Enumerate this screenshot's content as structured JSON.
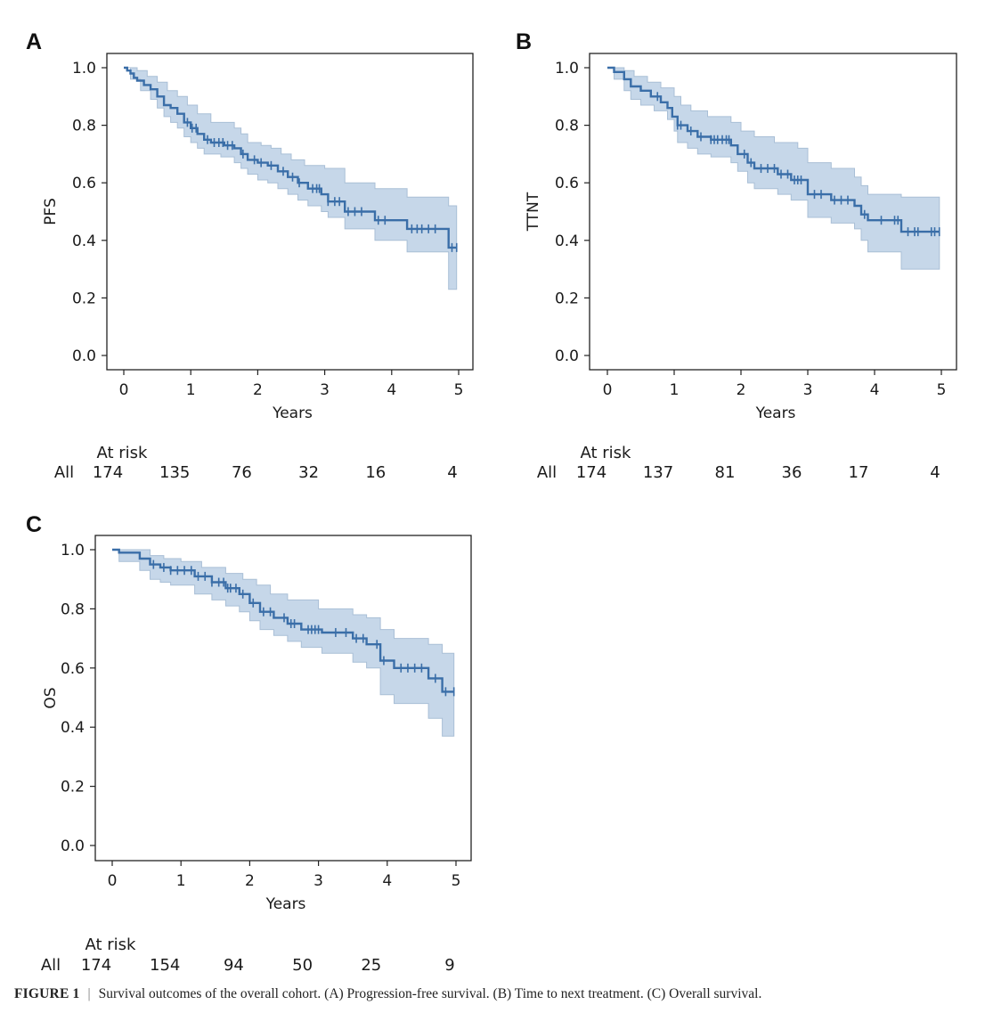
{
  "caption": {
    "figure_label": "FIGURE 1",
    "separator": "|",
    "text": "Survival outcomes of the overall cohort. (A) Progression-free survival. (B) Time to next treatment. (C) Overall survival."
  },
  "colors": {
    "line": "#3a6ea8",
    "ci_fill": "#c3d5e8",
    "ci_edge": "#a9bfd6",
    "axis": "#222222"
  },
  "chart_data": [
    {
      "panel": "A",
      "type": "line",
      "subtype": "kaplan-meier",
      "title": "",
      "xlabel": "Years",
      "ylabel": "PFS",
      "xlim": [
        0,
        5
      ],
      "ylim": [
        0.0,
        1.0
      ],
      "xticks": [
        "0",
        "1",
        "2",
        "3",
        "4",
        "5"
      ],
      "yticks": [
        "0.0",
        "0.2",
        "0.4",
        "0.6",
        "0.8",
        "1.0"
      ],
      "grid": false,
      "series": [
        {
          "name": "All",
          "steps": [
            [
              0,
              1.0
            ],
            [
              0.05,
              0.99
            ],
            [
              0.1,
              0.98
            ],
            [
              0.15,
              0.965
            ],
            [
              0.2,
              0.955
            ],
            [
              0.3,
              0.94
            ],
            [
              0.4,
              0.925
            ],
            [
              0.5,
              0.9
            ],
            [
              0.6,
              0.87
            ],
            [
              0.7,
              0.86
            ],
            [
              0.8,
              0.84
            ],
            [
              0.9,
              0.81
            ],
            [
              1.0,
              0.79
            ],
            [
              1.1,
              0.77
            ],
            [
              1.2,
              0.75
            ],
            [
              1.3,
              0.74
            ],
            [
              1.5,
              0.73
            ],
            [
              1.65,
              0.72
            ],
            [
              1.75,
              0.7
            ],
            [
              1.85,
              0.68
            ],
            [
              2.0,
              0.67
            ],
            [
              2.15,
              0.66
            ],
            [
              2.3,
              0.64
            ],
            [
              2.45,
              0.62
            ],
            [
              2.6,
              0.6
            ],
            [
              2.75,
              0.58
            ],
            [
              2.95,
              0.56
            ],
            [
              3.05,
              0.535
            ],
            [
              3.3,
              0.5
            ],
            [
              3.75,
              0.47
            ],
            [
              4.23,
              0.44
            ],
            [
              4.85,
              0.375
            ]
          ],
          "end_time": 4.97,
          "ci_lower": [
            [
              0,
              1.0
            ],
            [
              0.1,
              0.96
            ],
            [
              0.25,
              0.92
            ],
            [
              0.4,
              0.89
            ],
            [
              0.5,
              0.86
            ],
            [
              0.6,
              0.83
            ],
            [
              0.7,
              0.81
            ],
            [
              0.8,
              0.79
            ],
            [
              0.9,
              0.76
            ],
            [
              1.0,
              0.74
            ],
            [
              1.1,
              0.72
            ],
            [
              1.2,
              0.7
            ],
            [
              1.45,
              0.69
            ],
            [
              1.65,
              0.67
            ],
            [
              1.75,
              0.65
            ],
            [
              1.85,
              0.63
            ],
            [
              2.0,
              0.61
            ],
            [
              2.15,
              0.6
            ],
            [
              2.3,
              0.58
            ],
            [
              2.45,
              0.56
            ],
            [
              2.6,
              0.54
            ],
            [
              2.75,
              0.52
            ],
            [
              2.95,
              0.5
            ],
            [
              3.05,
              0.48
            ],
            [
              3.3,
              0.44
            ],
            [
              3.75,
              0.4
            ],
            [
              4.23,
              0.36
            ],
            [
              4.85,
              0.23
            ]
          ],
          "ci_upper": [
            [
              0,
              1.0
            ],
            [
              0.1,
              1.0
            ],
            [
              0.2,
              0.99
            ],
            [
              0.35,
              0.97
            ],
            [
              0.5,
              0.95
            ],
            [
              0.65,
              0.92
            ],
            [
              0.8,
              0.9
            ],
            [
              0.95,
              0.87
            ],
            [
              1.1,
              0.84
            ],
            [
              1.3,
              0.81
            ],
            [
              1.65,
              0.79
            ],
            [
              1.75,
              0.77
            ],
            [
              1.85,
              0.74
            ],
            [
              2.05,
              0.73
            ],
            [
              2.2,
              0.72
            ],
            [
              2.35,
              0.7
            ],
            [
              2.5,
              0.68
            ],
            [
              2.7,
              0.66
            ],
            [
              3.0,
              0.65
            ],
            [
              3.3,
              0.6
            ],
            [
              3.75,
              0.58
            ],
            [
              4.23,
              0.55
            ],
            [
              4.85,
              0.52
            ]
          ],
          "censor_times": [
            0.95,
            1.02,
            1.08,
            1.25,
            1.35,
            1.42,
            1.48,
            1.55,
            1.62,
            1.78,
            1.95,
            2.05,
            2.2,
            2.38,
            2.52,
            2.62,
            2.82,
            2.88,
            2.92,
            3.05,
            3.15,
            3.22,
            3.35,
            3.45,
            3.55,
            3.8,
            3.9,
            4.3,
            4.38,
            4.45,
            4.55,
            4.65,
            4.9,
            4.97
          ]
        }
      ],
      "at_risk": {
        "title": "At risk",
        "row_label": "All",
        "times": [
          0,
          1,
          2,
          3,
          4,
          5
        ],
        "counts": [
          174,
          135,
          76,
          32,
          16,
          4
        ]
      }
    },
    {
      "panel": "B",
      "type": "line",
      "subtype": "kaplan-meier",
      "title": "",
      "xlabel": "Years",
      "ylabel": "TTNT",
      "xlim": [
        0,
        5
      ],
      "ylim": [
        0.0,
        1.0
      ],
      "xticks": [
        "0",
        "1",
        "2",
        "3",
        "4",
        "5"
      ],
      "yticks": [
        "0.0",
        "0.2",
        "0.4",
        "0.6",
        "0.8",
        "1.0"
      ],
      "grid": false,
      "series": [
        {
          "name": "All",
          "steps": [
            [
              0,
              1.0
            ],
            [
              0.1,
              0.985
            ],
            [
              0.25,
              0.96
            ],
            [
              0.35,
              0.935
            ],
            [
              0.5,
              0.92
            ],
            [
              0.65,
              0.9
            ],
            [
              0.8,
              0.88
            ],
            [
              0.9,
              0.86
            ],
            [
              0.97,
              0.83
            ],
            [
              1.05,
              0.8
            ],
            [
              1.2,
              0.78
            ],
            [
              1.35,
              0.76
            ],
            [
              1.55,
              0.75
            ],
            [
              1.85,
              0.73
            ],
            [
              1.95,
              0.7
            ],
            [
              2.1,
              0.67
            ],
            [
              2.2,
              0.65
            ],
            [
              2.55,
              0.63
            ],
            [
              2.75,
              0.61
            ],
            [
              3.0,
              0.56
            ],
            [
              3.35,
              0.54
            ],
            [
              3.7,
              0.52
            ],
            [
              3.8,
              0.49
            ],
            [
              3.9,
              0.47
            ],
            [
              4.4,
              0.43
            ]
          ],
          "end_time": 4.97,
          "ci_lower": [
            [
              0,
              1.0
            ],
            [
              0.1,
              0.96
            ],
            [
              0.25,
              0.92
            ],
            [
              0.35,
              0.89
            ],
            [
              0.5,
              0.87
            ],
            [
              0.7,
              0.85
            ],
            [
              0.9,
              0.82
            ],
            [
              1.0,
              0.78
            ],
            [
              1.05,
              0.74
            ],
            [
              1.2,
              0.72
            ],
            [
              1.35,
              0.7
            ],
            [
              1.55,
              0.69
            ],
            [
              1.85,
              0.67
            ],
            [
              1.95,
              0.64
            ],
            [
              2.1,
              0.6
            ],
            [
              2.2,
              0.58
            ],
            [
              2.55,
              0.56
            ],
            [
              2.75,
              0.54
            ],
            [
              3.0,
              0.48
            ],
            [
              3.35,
              0.46
            ],
            [
              3.7,
              0.44
            ],
            [
              3.8,
              0.4
            ],
            [
              3.9,
              0.36
            ],
            [
              4.4,
              0.3
            ]
          ],
          "ci_upper": [
            [
              0,
              1.0
            ],
            [
              0.1,
              1.0
            ],
            [
              0.25,
              0.99
            ],
            [
              0.4,
              0.97
            ],
            [
              0.6,
              0.95
            ],
            [
              0.8,
              0.93
            ],
            [
              1.0,
              0.9
            ],
            [
              1.1,
              0.87
            ],
            [
              1.25,
              0.85
            ],
            [
              1.5,
              0.83
            ],
            [
              1.85,
              0.81
            ],
            [
              2.0,
              0.78
            ],
            [
              2.2,
              0.76
            ],
            [
              2.5,
              0.74
            ],
            [
              2.85,
              0.72
            ],
            [
              3.0,
              0.67
            ],
            [
              3.35,
              0.65
            ],
            [
              3.7,
              0.62
            ],
            [
              3.8,
              0.59
            ],
            [
              3.9,
              0.56
            ],
            [
              4.4,
              0.55
            ]
          ],
          "censor_times": [
            0.75,
            1.05,
            1.1,
            1.25,
            1.4,
            1.55,
            1.6,
            1.65,
            1.72,
            1.78,
            1.82,
            2.05,
            2.15,
            2.3,
            2.4,
            2.5,
            2.6,
            2.7,
            2.8,
            2.85,
            2.9,
            3.1,
            3.2,
            3.4,
            3.5,
            3.6,
            3.85,
            4.1,
            4.3,
            4.35,
            4.5,
            4.6,
            4.65,
            4.85,
            4.9,
            4.97
          ]
        }
      ],
      "at_risk": {
        "title": "At risk",
        "row_label": "All",
        "times": [
          0,
          1,
          2,
          3,
          4,
          5
        ],
        "counts": [
          174,
          137,
          81,
          36,
          17,
          4
        ]
      }
    },
    {
      "panel": "C",
      "type": "line",
      "subtype": "kaplan-meier",
      "title": "",
      "xlabel": "Years",
      "ylabel": "OS",
      "xlim": [
        0,
        5
      ],
      "ylim": [
        0.0,
        1.0
      ],
      "xticks": [
        "0",
        "1",
        "2",
        "3",
        "4",
        "5"
      ],
      "yticks": [
        "0.0",
        "0.2",
        "0.4",
        "0.6",
        "0.8",
        "1.0"
      ],
      "grid": false,
      "series": [
        {
          "name": "All",
          "steps": [
            [
              0,
              1.0
            ],
            [
              0.1,
              0.99
            ],
            [
              0.4,
              0.97
            ],
            [
              0.55,
              0.95
            ],
            [
              0.7,
              0.94
            ],
            [
              0.85,
              0.93
            ],
            [
              1.2,
              0.91
            ],
            [
              1.45,
              0.89
            ],
            [
              1.65,
              0.87
            ],
            [
              1.85,
              0.85
            ],
            [
              2.0,
              0.82
            ],
            [
              2.15,
              0.79
            ],
            [
              2.35,
              0.77
            ],
            [
              2.55,
              0.75
            ],
            [
              2.75,
              0.73
            ],
            [
              3.05,
              0.72
            ],
            [
              3.5,
              0.7
            ],
            [
              3.7,
              0.68
            ],
            [
              3.9,
              0.625
            ],
            [
              4.1,
              0.6
            ],
            [
              4.6,
              0.565
            ],
            [
              4.8,
              0.52
            ]
          ],
          "end_time": 4.97,
          "ci_lower": [
            [
              0,
              1.0
            ],
            [
              0.1,
              0.96
            ],
            [
              0.4,
              0.93
            ],
            [
              0.55,
              0.9
            ],
            [
              0.7,
              0.89
            ],
            [
              0.85,
              0.88
            ],
            [
              1.2,
              0.85
            ],
            [
              1.45,
              0.83
            ],
            [
              1.65,
              0.81
            ],
            [
              1.85,
              0.79
            ],
            [
              2.0,
              0.76
            ],
            [
              2.15,
              0.73
            ],
            [
              2.35,
              0.71
            ],
            [
              2.55,
              0.69
            ],
            [
              2.75,
              0.67
            ],
            [
              3.05,
              0.65
            ],
            [
              3.5,
              0.62
            ],
            [
              3.7,
              0.6
            ],
            [
              3.9,
              0.51
            ],
            [
              4.1,
              0.48
            ],
            [
              4.6,
              0.43
            ],
            [
              4.8,
              0.37
            ]
          ],
          "ci_upper": [
            [
              0,
              1.0
            ],
            [
              0.4,
              1.0
            ],
            [
              0.55,
              0.98
            ],
            [
              0.75,
              0.97
            ],
            [
              1.0,
              0.96
            ],
            [
              1.3,
              0.94
            ],
            [
              1.65,
              0.92
            ],
            [
              1.9,
              0.9
            ],
            [
              2.1,
              0.88
            ],
            [
              2.3,
              0.85
            ],
            [
              2.55,
              0.83
            ],
            [
              3.0,
              0.8
            ],
            [
              3.5,
              0.78
            ],
            [
              3.7,
              0.77
            ],
            [
              3.9,
              0.73
            ],
            [
              4.1,
              0.7
            ],
            [
              4.6,
              0.68
            ],
            [
              4.8,
              0.65
            ]
          ],
          "censor_times": [
            0.6,
            0.75,
            0.85,
            0.95,
            1.05,
            1.15,
            1.25,
            1.35,
            1.45,
            1.55,
            1.62,
            1.68,
            1.72,
            1.8,
            1.9,
            2.05,
            2.2,
            2.3,
            2.5,
            2.6,
            2.65,
            2.85,
            2.9,
            2.95,
            3.0,
            3.25,
            3.4,
            3.55,
            3.65,
            3.85,
            3.95,
            4.2,
            4.3,
            4.4,
            4.5,
            4.7,
            4.85,
            4.97
          ]
        }
      ],
      "at_risk": {
        "title": "At risk",
        "row_label": "All",
        "times": [
          0,
          1,
          2,
          3,
          4,
          5
        ],
        "counts": [
          174,
          154,
          94,
          50,
          25,
          9
        ]
      }
    }
  ]
}
